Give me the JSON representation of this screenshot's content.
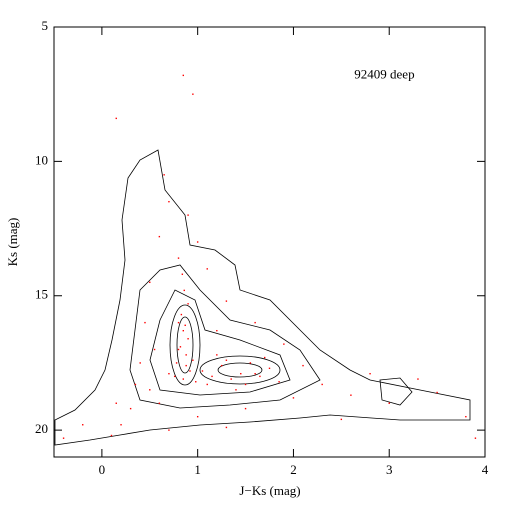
{
  "chart_data": {
    "type": "scatter",
    "annotation": "92409 deep",
    "annotation_pos": [
      2.95,
      6.8
    ],
    "xlabel": "J−Ks (mag)",
    "ylabel": "Ks (mag)",
    "xlim": [
      -0.5,
      4
    ],
    "xticks": [
      0,
      1,
      2,
      3,
      4
    ],
    "ylim": [
      5,
      21
    ],
    "yticks": [
      5,
      10,
      15,
      20
    ],
    "y_inverted": true,
    "color": "#ff0000",
    "x": [
      0.8,
      0.85,
      0.9,
      0.82,
      0.88,
      0.78,
      0.92,
      0.85,
      0.8,
      0.87,
      0.83,
      0.9,
      0.86,
      0.84,
      0.8,
      0.88,
      0.76,
      0.95,
      0.7,
      0.98,
      1.05,
      1.15,
      1.25,
      1.35,
      1.45,
      1.55,
      1.65,
      1.75,
      1.85,
      1.1,
      1.3,
      1.5,
      1.7,
      1.2,
      1.4,
      1.6,
      0.4,
      0.5,
      0.3,
      0.2,
      0.6,
      1.0,
      1.5,
      2.0,
      2.3,
      2.6,
      3.0,
      3.5,
      3.8,
      2.1,
      1.9,
      1.6,
      1.3,
      1.1,
      0.9,
      0.7,
      0.6,
      0.5,
      0.45,
      0.35,
      0.15,
      -0.2,
      -0.4,
      0.1,
      0.7,
      1.3,
      2.5,
      0.85,
      0.95,
      0.15,
      3.9,
      0.65,
      1.0,
      1.2,
      0.55,
      2.8,
      3.3
    ],
    "y": [
      16.0,
      16.3,
      16.6,
      16.9,
      17.2,
      17.5,
      17.8,
      18.1,
      17.0,
      16.1,
      15.7,
      15.3,
      14.8,
      14.2,
      13.6,
      17.6,
      18.0,
      17.4,
      17.9,
      18.2,
      17.8,
      18.0,
      17.6,
      18.1,
      17.9,
      17.5,
      18.0,
      17.7,
      18.2,
      18.3,
      17.4,
      18.3,
      17.3,
      17.2,
      18.5,
      17.9,
      17.5,
      18.5,
      19.2,
      19.8,
      19.0,
      19.5,
      19.2,
      18.8,
      18.3,
      18.7,
      19.0,
      18.6,
      19.5,
      17.6,
      16.8,
      16.0,
      15.2,
      14.0,
      12.0,
      11.5,
      12.8,
      14.5,
      16.0,
      18.3,
      19.0,
      19.8,
      20.3,
      20.2,
      20.0,
      19.9,
      19.6,
      6.8,
      7.5,
      8.4,
      20.3,
      10.5,
      13.0,
      16.3,
      17.0,
      17.9,
      18.1
    ]
  }
}
